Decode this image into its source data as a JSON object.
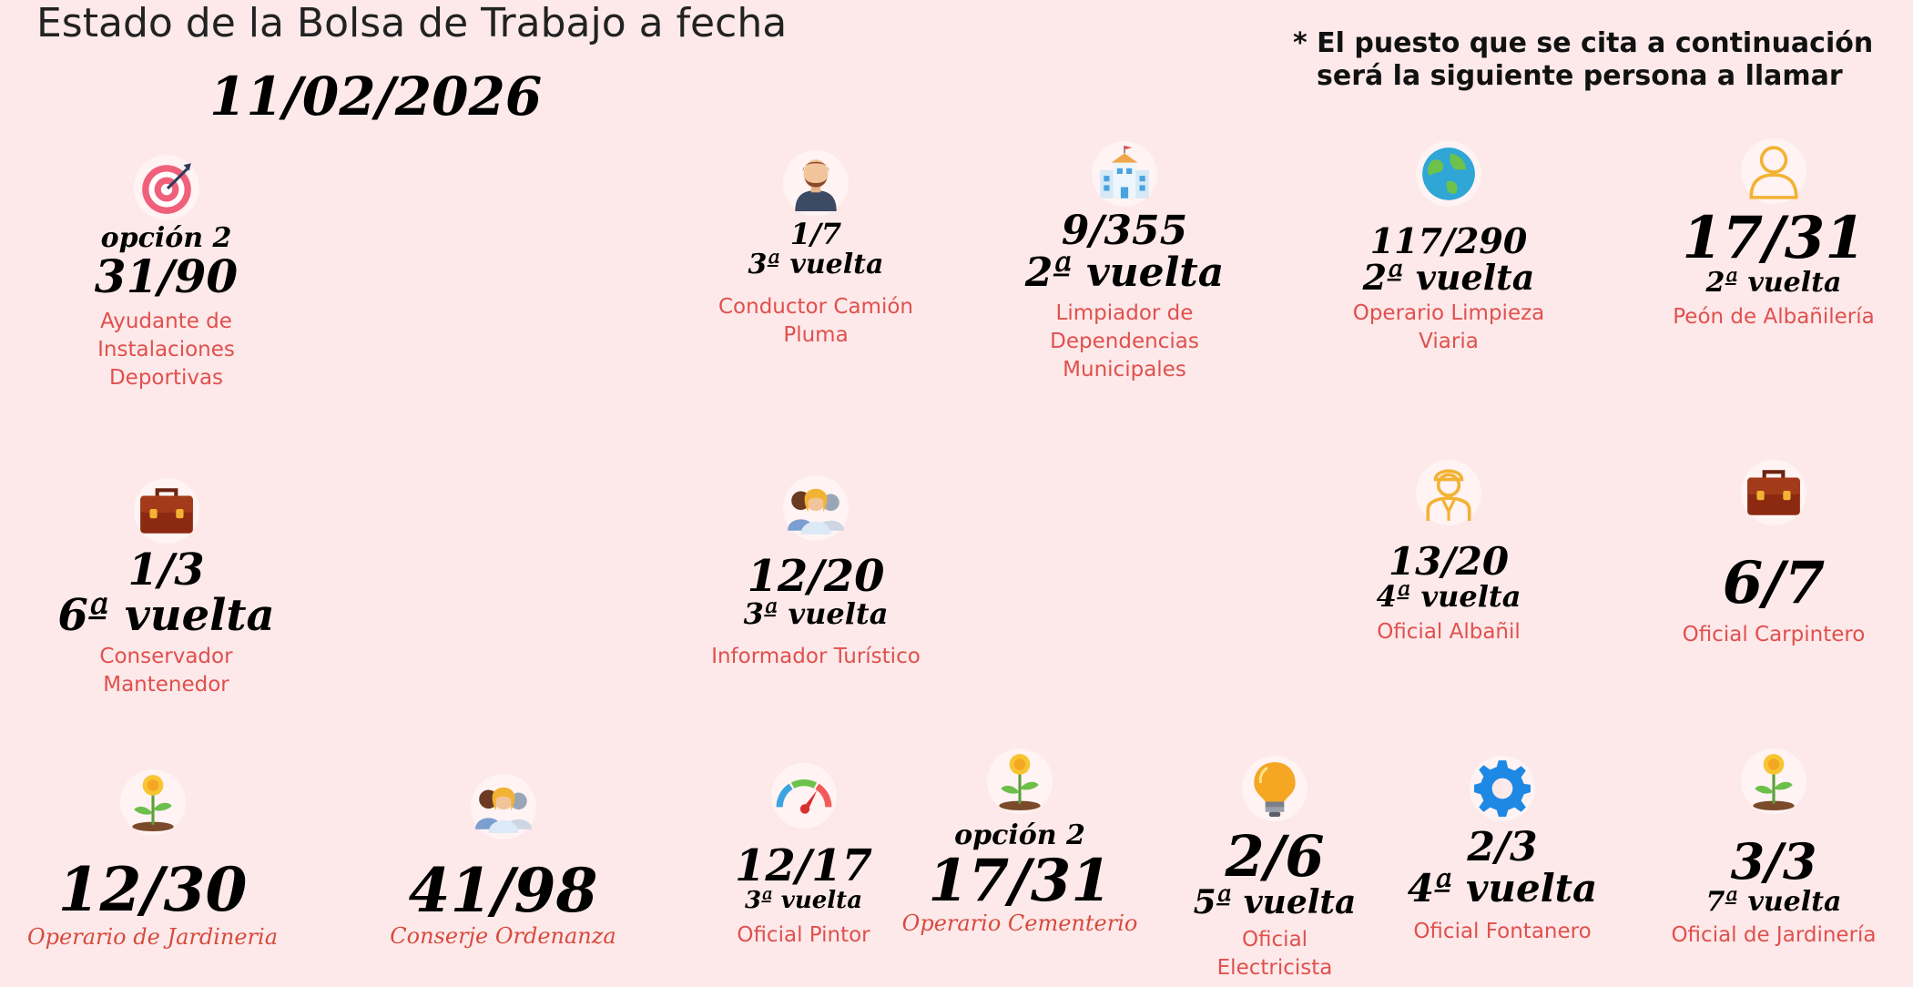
{
  "header": {
    "title": "Estado de la Bolsa de Trabajo a fecha",
    "date": "11/02/2026",
    "note_line1": "* El puesto que se cita a continuación",
    "note_line2": "será la siguiente persona a llamar"
  },
  "colors": {
    "background": "#fde9e9",
    "label": "#e0504e",
    "text": "#000000"
  },
  "jobs": [
    {
      "icon": "target-icon",
      "option": "opción 2",
      "count": "31/90",
      "round": "",
      "label_1": "Ayudante de Instalaciones",
      "label_2": "Deportivas"
    },
    {
      "icon": "driver-icon",
      "option": "",
      "count": "1/7",
      "round": "3ª vuelta",
      "label_1": "Conductor Camión Pluma",
      "label_2": ""
    },
    {
      "icon": "school-building-icon",
      "option": "",
      "count": "9/355",
      "round": "2ª vuelta",
      "label_1": "Limpiador de",
      "label_2": "Dependencias Municipales"
    },
    {
      "icon": "globe-icon",
      "option": "",
      "count": "117/290",
      "round": "2ª vuelta",
      "label_1": "Operario Limpieza Viaria",
      "label_2": ""
    },
    {
      "icon": "person-outline-icon",
      "option": "",
      "count": "17/31",
      "round": "2ª vuelta",
      "label_1": "Peón de Albañilería",
      "label_2": ""
    },
    {
      "icon": "briefcase-icon",
      "option": "",
      "count": "1/3",
      "round": "6ª vuelta",
      "label_1": "Conservador Mantenedor",
      "label_2": ""
    },
    {
      "icon": "group-icon",
      "option": "",
      "count": "12/20",
      "round": "3ª vuelta",
      "label_1": "Informador Turístico",
      "label_2": ""
    },
    {
      "icon": "worker-outline-icon",
      "option": "",
      "count": "13/20",
      "round": "4ª vuelta",
      "label_1": "Oficial Albañil",
      "label_2": ""
    },
    {
      "icon": "briefcase-icon",
      "option": "",
      "count": "6/7",
      "round": "",
      "label_1": "Oficial Carpintero",
      "label_2": ""
    },
    {
      "icon": "plant-icon",
      "option": "",
      "count": "12/30",
      "round": "",
      "label_1": "Operario de Jardineria",
      "label_2": ""
    },
    {
      "icon": "group-icon",
      "option": "",
      "count": "41/98",
      "round": "",
      "label_1": "Conserje Ordenanza",
      "label_2": ""
    },
    {
      "icon": "gauge-icon",
      "option": "",
      "count": "12/17",
      "round": "3ª vuelta",
      "label_1": "Oficial Pintor",
      "label_2": ""
    },
    {
      "icon": "plant-icon",
      "option": "opción 2",
      "count": "17/31",
      "round": "",
      "label_1": "Operario Cementerio",
      "label_2": ""
    },
    {
      "icon": "lightbulb-icon",
      "option": "",
      "count": "2/6",
      "round": "5ª vuelta",
      "label_1": "Oficial Electricista",
      "label_2": ""
    },
    {
      "icon": "gear-icon",
      "option": "",
      "count": "2/3",
      "round": "4ª vuelta",
      "label_1": "Oficial Fontanero",
      "label_2": ""
    },
    {
      "icon": "plant-icon",
      "option": "",
      "count": "3/3",
      "round": "7ª vuelta",
      "label_1": "Oficial de Jardinería",
      "label_2": ""
    }
  ]
}
